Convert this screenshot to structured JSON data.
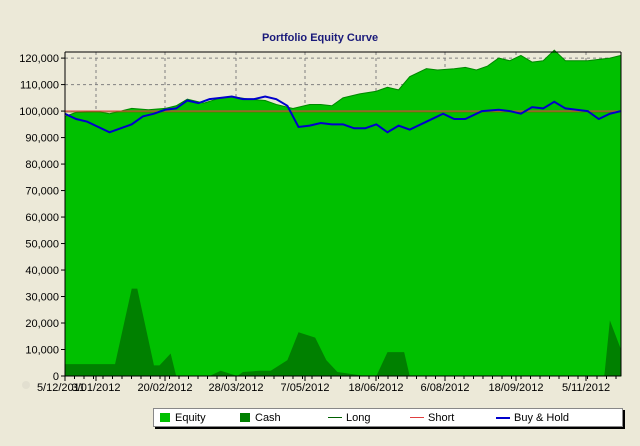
{
  "chart_data": {
    "type": "area",
    "title": "Portfolio Equity Curve",
    "xlabel": "",
    "ylabel": "",
    "ylim": [
      0,
      120000
    ],
    "yticks": [
      "0",
      "10,000",
      "20,000",
      "30,000",
      "40,000",
      "50,000",
      "60,000",
      "70,000",
      "80,000",
      "90,000",
      "100,000",
      "110,000",
      "120,000"
    ],
    "xtick_labels": [
      "5/12/2011",
      "3/01/2012",
      "20/02/2012",
      "28/03/2012",
      "7/05/2012",
      "18/06/2012",
      "6/08/2012",
      "18/09/2012",
      "5/11/2012"
    ],
    "grid": "dashed",
    "legend_position": "bottom",
    "series": [
      {
        "name": "Equity",
        "kind": "area",
        "color": "#00c000",
        "x": [
          0,
          0.02,
          0.06,
          0.08,
          0.1,
          0.12,
          0.15,
          0.18,
          0.2,
          0.22,
          0.25,
          0.28,
          0.3,
          0.33,
          0.36,
          0.38,
          0.41,
          0.44,
          0.46,
          0.48,
          0.5,
          0.53,
          0.56,
          0.58,
          0.6,
          0.62,
          0.65,
          0.67,
          0.7,
          0.72,
          0.74,
          0.76,
          0.78,
          0.8,
          0.82,
          0.84,
          0.86,
          0.88,
          0.9,
          0.92,
          0.94,
          0.96,
          0.98,
          1.0
        ],
        "values": [
          98000,
          99500,
          99800,
          99000,
          100000,
          101000,
          100500,
          101000,
          102000,
          104500,
          103000,
          105000,
          105500,
          104500,
          104000,
          102500,
          101000,
          102500,
          102500,
          102000,
          105000,
          106500,
          107500,
          109000,
          108000,
          113000,
          116000,
          115500,
          116000,
          116500,
          115500,
          117000,
          120000,
          119000,
          121000,
          118500,
          119000,
          123000,
          119000,
          119000,
          119000,
          119500,
          120000,
          121000
        ]
      },
      {
        "name": "Cash",
        "kind": "area",
        "color": "#008000",
        "x": [
          0,
          0.08,
          0.09,
          0.12,
          0.13,
          0.16,
          0.17,
          0.19,
          0.2,
          0.26,
          0.28,
          0.31,
          0.32,
          0.35,
          0.37,
          0.4,
          0.42,
          0.45,
          0.47,
          0.49,
          0.54,
          0.56,
          0.58,
          0.61,
          0.62,
          0.85,
          0.88,
          0.9,
          0.97,
          0.98,
          1.0
        ],
        "values": [
          4500,
          4500,
          4500,
          33000,
          33000,
          4000,
          4000,
          8500,
          0,
          0,
          2000,
          0,
          1500,
          2000,
          2000,
          6000,
          16500,
          14500,
          6000,
          1500,
          0,
          0,
          9000,
          9000,
          0,
          0,
          0,
          0,
          0,
          21000,
          10000
        ]
      },
      {
        "name": "Long",
        "kind": "line",
        "color": "#006000",
        "values": []
      },
      {
        "name": "Short",
        "kind": "line",
        "color": "#e04040",
        "values": [
          100000,
          100000
        ]
      },
      {
        "name": "Buy & Hold",
        "kind": "line",
        "color": "#0000cc",
        "x": [
          0,
          0.02,
          0.04,
          0.06,
          0.08,
          0.1,
          0.12,
          0.14,
          0.16,
          0.18,
          0.2,
          0.22,
          0.24,
          0.26,
          0.28,
          0.3,
          0.32,
          0.34,
          0.36,
          0.38,
          0.4,
          0.42,
          0.44,
          0.46,
          0.48,
          0.5,
          0.52,
          0.54,
          0.56,
          0.58,
          0.6,
          0.62,
          0.65,
          0.68,
          0.7,
          0.72,
          0.75,
          0.78,
          0.8,
          0.82,
          0.84,
          0.86,
          0.88,
          0.9,
          0.92,
          0.94,
          0.96,
          0.98,
          1.0
        ],
        "values": [
          99000,
          97000,
          96000,
          94000,
          92000,
          93500,
          95000,
          98000,
          99000,
          100500,
          101000,
          104000,
          103000,
          104500,
          105000,
          105500,
          104500,
          104500,
          105500,
          104500,
          102000,
          94000,
          94500,
          95500,
          95000,
          95000,
          93500,
          93500,
          95000,
          92000,
          94500,
          93000,
          96000,
          99000,
          97000,
          97000,
          100000,
          100500,
          100000,
          99000,
          101500,
          101000,
          103500,
          101000,
          100500,
          100000,
          97000,
          99000,
          100000
        ]
      }
    ]
  },
  "legend": {
    "items": [
      {
        "label": "Equity",
        "type": "box",
        "color": "#00c000"
      },
      {
        "label": "Cash",
        "type": "box",
        "color": "#008000"
      },
      {
        "label": "Long",
        "type": "line",
        "color": "#006000"
      },
      {
        "label": "Short",
        "type": "line",
        "color": "#e04040"
      },
      {
        "label": "Buy & Hold",
        "type": "line",
        "color": "#0000cc"
      }
    ]
  },
  "colors": {
    "background": "#ece9d8",
    "plot_background": "#ece9d8",
    "title": "#1a1a7a"
  }
}
